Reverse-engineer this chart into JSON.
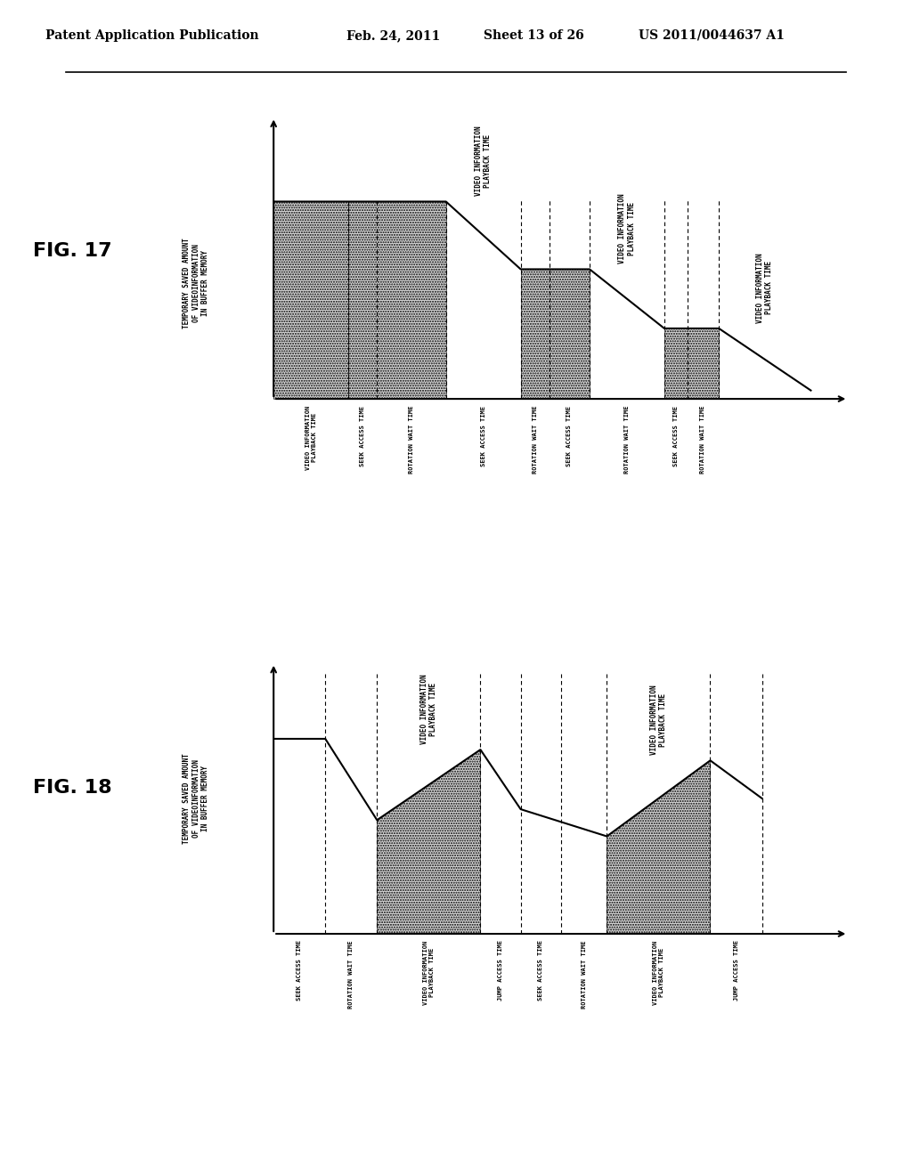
{
  "bg_color": "#ffffff",
  "header_text": "Patent Application Publication",
  "header_date": "Feb. 24, 2011",
  "header_sheet": "Sheet 13 of 26",
  "header_patent": "US 2011/0044637 A1",
  "fig17_label": "FIG. 17",
  "fig18_label": "FIG. 18",
  "fig17_ylabel": [
    "TEMPORARY SAVED AMOUNT",
    "OF VIDEOINFORMATION",
    "IN BUFFER MEMORY"
  ],
  "fig18_ylabel": [
    "TEMPORARY SAVED AMOUNT",
    "OF VIDEOINFORMATION",
    "IN BUFFER MEMORY"
  ],
  "fig17_xtick_labels": [
    "VIDEO INFORMATION\nPLAYBACK TIME",
    "SEEK ACCESS TIME",
    "ROTATION WAIT TIME",
    "SEEK ACCESS TIME",
    "ROTATION WAIT TIME",
    "SEEK ACCESS TIME",
    "ROTATION WAIT TIME",
    "SEEK ACCESS TIME",
    "ROTATION WAIT TIME"
  ],
  "fig18_xtick_labels": [
    "SEEK ACCESS TIME",
    "ROTATION WAIT TIME",
    "VIDEO INFORMATION\nPLAYBACK TIME",
    "JUMP ACCESS TIME",
    "SEEK ACCESS TIME",
    "ROTATION WAIT TIME",
    "VIDEO INFORMATION\nPLAYBACK TIME",
    "JUMP ACCESS TIME"
  ],
  "fig17_above_labels": [
    "VIDEO INFORMATION\nPLAYBACK TIME",
    "VIDEO INFORMATION\nPLAYBACK TIME",
    "VIDEO INFORMATION\nPLAYBACK TIME"
  ],
  "fig18_above_labels": [
    "VIDEO INFORMATION\nPLAYBACK TIME",
    "VIDEO INFORMATION\nPLAYBACK TIME"
  ]
}
